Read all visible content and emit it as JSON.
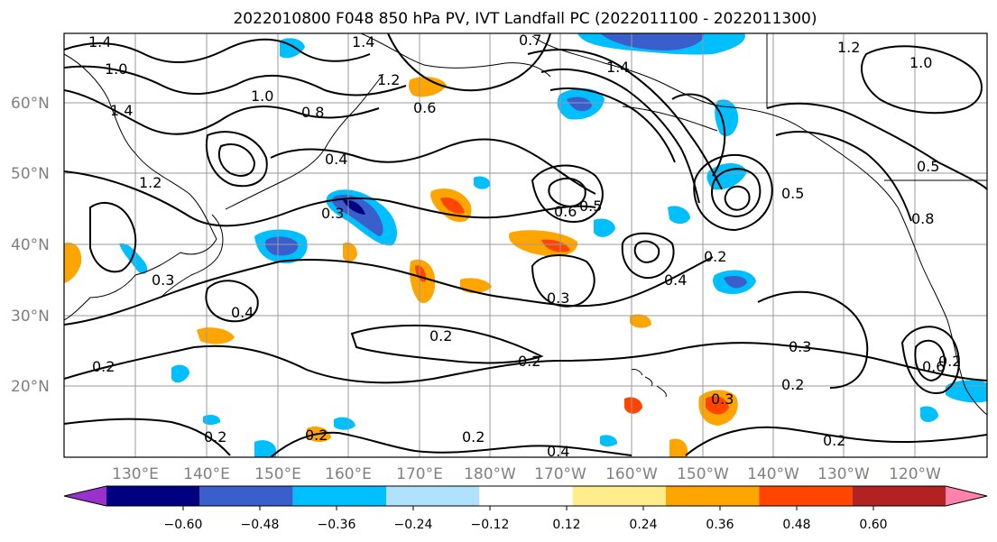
{
  "title": "2022010800 F048 850 hPa PV, IVT Landfall PC (2022011100 - 2022011300)",
  "lat_labels": [
    "60°N",
    "50°N",
    "40°N",
    "30°N",
    "20°N"
  ],
  "lon_labels": [
    "130°E",
    "140°E",
    "150°E",
    "160°E",
    "170°E",
    "180°W",
    "170°W",
    "160°W",
    "150°W",
    "140°W",
    "130°W",
    "120°W"
  ],
  "colorbar": {
    "tick_labels": [
      "-0.60",
      "-0.48",
      "-0.36",
      "-0.24",
      "-0.12",
      "0.12",
      "0.24",
      "0.36",
      "0.48",
      "0.60"
    ],
    "colors": [
      "#9932cc",
      "#000080",
      "#3a5fcd",
      "#00bfff",
      "#b0e2ff",
      "#ffffff",
      "#ffec8b",
      "#ffa500",
      "#ff4500",
      "#b22222",
      "#ff82ab"
    ]
  },
  "contour_labels": [
    "1.4",
    "1.4",
    "0.7",
    "1.2",
    "1.0",
    "1.4",
    "1.0",
    "1.2",
    "0.8",
    "0.6",
    "1.4",
    "1.2",
    "1.0",
    "0.4",
    "0.3",
    "0.6",
    "0.5",
    "0.5",
    "0.8",
    "0.5",
    "0.2",
    "0.4",
    "0.3",
    "0.3",
    "0.4",
    "0.2",
    "0.3",
    "0.2",
    "0.2",
    "0.6",
    "0.2",
    "0.2",
    "0.2",
    "0.2",
    "0.4",
    "0.2",
    "0.3",
    "0.2"
  ]
}
